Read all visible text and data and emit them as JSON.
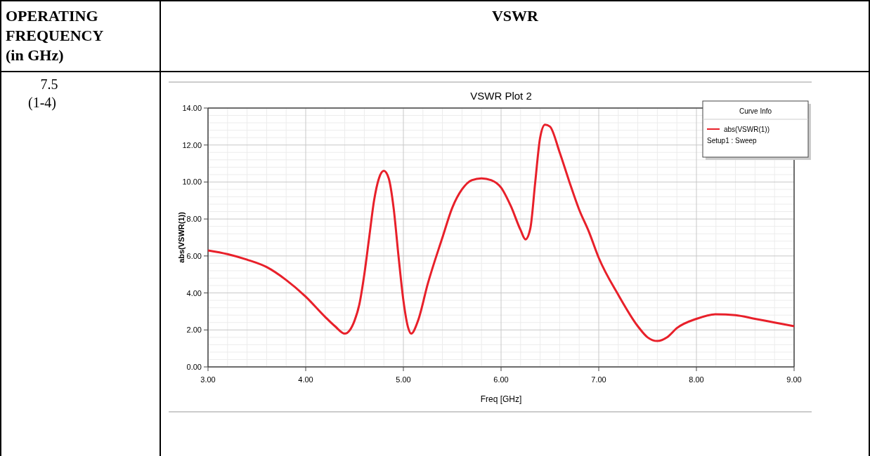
{
  "chart_data": {
    "type": "line",
    "title": "VSWR Plot 2",
    "xlabel": "Freq [GHz]",
    "ylabel": "abs(VSWR(1))",
    "legend_title": "Curve Info",
    "annotations": [
      "OPERATING FREQUENCY (in GHz)",
      "VSWR",
      "7.5",
      "(1-4)",
      "Setup1 : Sweep"
    ],
    "x": [
      3.0,
      3.2,
      3.4,
      3.6,
      3.8,
      4.0,
      4.2,
      4.3,
      4.4,
      4.5,
      4.55,
      4.6,
      4.65,
      4.7,
      4.75,
      4.8,
      4.85,
      4.9,
      4.95,
      5.0,
      5.05,
      5.08,
      5.15,
      5.25,
      5.4,
      5.5,
      5.6,
      5.7,
      5.8,
      5.9,
      6.0,
      6.1,
      6.2,
      6.25,
      6.3,
      6.35,
      6.4,
      6.45,
      6.5,
      6.6,
      6.7,
      6.8,
      6.9,
      7.0,
      7.2,
      7.4,
      7.5,
      7.6,
      7.7,
      7.8,
      8.0,
      8.2,
      8.4,
      8.6,
      8.8,
      9.0
    ],
    "series": [
      {
        "name": "abs(VSWR(1))",
        "color": "#e8202a",
        "values": [
          6.3,
          6.1,
          5.8,
          5.4,
          4.7,
          3.8,
          2.7,
          2.2,
          1.8,
          2.5,
          3.4,
          5.0,
          7.0,
          9.0,
          10.2,
          10.6,
          10.2,
          8.6,
          6.0,
          3.6,
          2.1,
          1.8,
          2.5,
          4.5,
          7.0,
          8.6,
          9.6,
          10.1,
          10.2,
          10.1,
          9.7,
          8.7,
          7.4,
          6.9,
          7.5,
          10.0,
          12.4,
          13.1,
          13.0,
          11.6,
          10.0,
          8.5,
          7.3,
          5.9,
          3.9,
          2.2,
          1.6,
          1.4,
          1.6,
          2.1,
          2.6,
          2.85,
          2.8,
          2.6,
          2.4,
          2.2
        ]
      }
    ],
    "xlim": [
      3,
      9
    ],
    "ylim": [
      0,
      14
    ],
    "xticks": [
      {
        "value": 3,
        "label": "3.00"
      },
      {
        "value": 4,
        "label": "4.00"
      },
      {
        "value": 5,
        "label": "5.00"
      },
      {
        "value": 6,
        "label": "6.00"
      },
      {
        "value": 7,
        "label": "7.00"
      },
      {
        "value": 8,
        "label": "8.00"
      },
      {
        "value": 9,
        "label": "9.00"
      }
    ],
    "yticks": [
      {
        "value": 0,
        "label": "0.00"
      },
      {
        "value": 2,
        "label": "2.00"
      },
      {
        "value": 4,
        "label": "4.00"
      },
      {
        "value": 6,
        "label": "6.00"
      },
      {
        "value": 8,
        "label": "8.00"
      },
      {
        "value": 10,
        "label": "10.00"
      },
      {
        "value": 12,
        "label": "12.00"
      },
      {
        "value": 14,
        "label": "14.00"
      }
    ],
    "grid": true,
    "legend": "top right",
    "marker": "none",
    "line_style": "solid"
  }
}
